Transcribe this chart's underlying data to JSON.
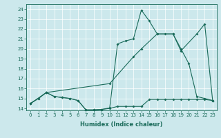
{
  "xlabel": "Humidex (Indice chaleur)",
  "bg_color": "#cce8ec",
  "line_color": "#1a6b5a",
  "xlim": [
    -0.5,
    23.5
  ],
  "ylim": [
    13.8,
    24.5
  ],
  "yticks": [
    14,
    15,
    16,
    17,
    18,
    19,
    20,
    21,
    22,
    23,
    24
  ],
  "xticks": [
    0,
    1,
    2,
    3,
    4,
    5,
    6,
    7,
    8,
    9,
    10,
    11,
    12,
    13,
    14,
    15,
    16,
    17,
    18,
    19,
    20,
    21,
    22,
    23
  ],
  "series1_x": [
    0,
    1,
    2,
    3,
    4,
    5,
    6,
    7,
    8,
    9,
    10,
    11,
    12,
    13,
    14,
    15,
    16,
    17,
    18,
    19,
    20,
    21,
    22,
    23
  ],
  "series1_y": [
    14.5,
    15.0,
    15.6,
    15.2,
    15.1,
    15.0,
    14.8,
    13.85,
    13.85,
    13.9,
    14.0,
    14.2,
    14.2,
    14.2,
    14.2,
    14.9,
    14.9,
    14.9,
    14.9,
    14.9,
    14.9,
    14.9,
    14.9,
    14.8
  ],
  "series2_x": [
    0,
    1,
    2,
    3,
    4,
    5,
    6,
    7,
    8,
    9,
    10,
    11,
    12,
    13,
    14,
    15,
    16,
    17,
    18,
    19,
    20,
    21,
    22,
    23
  ],
  "series2_y": [
    14.5,
    15.0,
    15.6,
    15.2,
    15.1,
    15.0,
    14.8,
    13.85,
    13.85,
    13.9,
    14.05,
    20.5,
    20.8,
    21.0,
    23.9,
    22.8,
    21.5,
    21.5,
    21.5,
    20.0,
    18.5,
    15.2,
    15.0,
    14.8
  ],
  "series3_x": [
    0,
    2,
    10,
    13,
    14,
    16,
    18,
    19,
    21,
    22,
    23
  ],
  "series3_y": [
    14.5,
    15.6,
    16.5,
    19.2,
    20.0,
    21.5,
    21.5,
    19.8,
    21.5,
    22.5,
    14.8
  ]
}
